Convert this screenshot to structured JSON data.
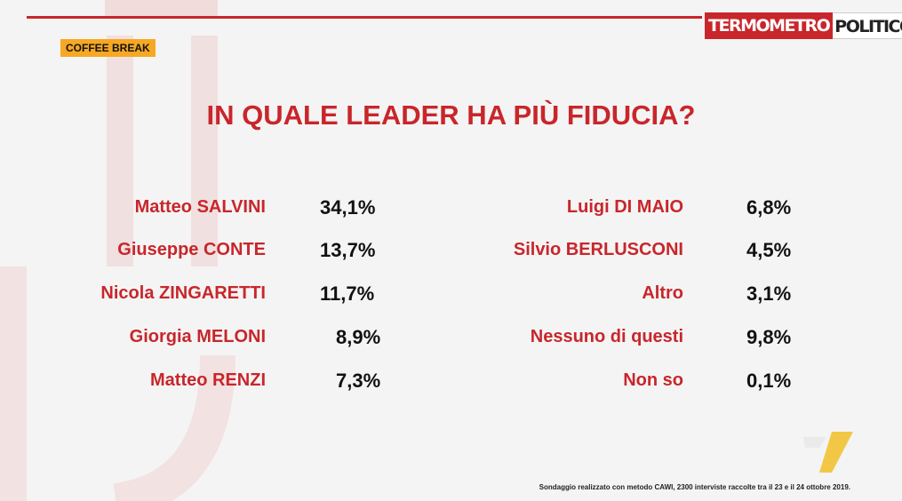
{
  "brand": {
    "part1": "TERMOMETRO",
    "part2": "POLITICO"
  },
  "tag": "COFFEE BREAK",
  "title": "IN QUALE LEADER HA PIÙ FIDUCIA?",
  "left": [
    {
      "name": "Matteo SALVINI",
      "value": "34,1%"
    },
    {
      "name": "Giuseppe CONTE",
      "value": "13,7%"
    },
    {
      "name": "Nicola ZINGARETTI",
      "value": "11,7%"
    },
    {
      "name": "Giorgia MELONI",
      "value": "8,9%"
    },
    {
      "name": "Matteo RENZI",
      "value": "7,3%"
    }
  ],
  "right": [
    {
      "name": "Luigi DI MAIO",
      "value": "6,8%"
    },
    {
      "name": "Silvio BERLUSCONI",
      "value": "4,5%"
    },
    {
      "name": "Altro",
      "value": "3,1%"
    },
    {
      "name": "Nessuno di questi",
      "value": "9,8%"
    },
    {
      "name": "Non so",
      "value": "0,1%"
    }
  ],
  "footnote": "Sondaggio realizzato con metodo CAWI, 2300 interviste raccolte tra il 23 e il 24 ottobre 2019.",
  "colors": {
    "accent": "#c8262b",
    "tag": "#f7a823"
  }
}
